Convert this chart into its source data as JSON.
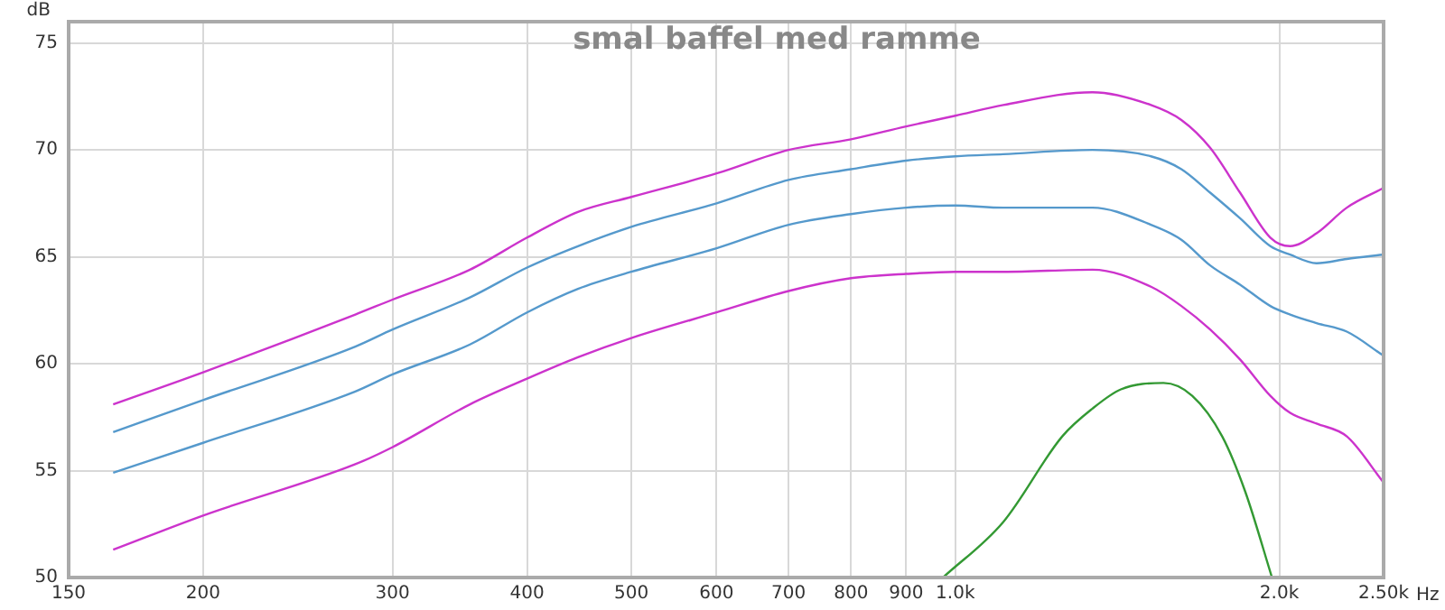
{
  "chart_data": {
    "type": "line",
    "title": "smal baffel med ramme",
    "xlabel": "Hz",
    "ylabel": "dB",
    "x": [
      165,
      200,
      277,
      300,
      354,
      400,
      446,
      500,
      600,
      700,
      800,
      900,
      1000,
      1108,
      1341,
      1520,
      1622,
      1725,
      1839,
      1962,
      2047,
      2166,
      2311,
      2495
    ],
    "series": [
      {
        "color": "#cc33cc",
        "values": [
          58.1,
          59.6,
          62.3,
          63.0,
          64.4,
          65.9,
          67.1,
          67.8,
          68.9,
          70.0,
          70.5,
          71.1,
          71.6,
          72.1,
          72.7,
          72.1,
          71.4,
          70.1,
          68.0,
          65.9,
          65.5,
          66.1,
          67.3,
          68.2
        ]
      },
      {
        "color": "#5599cc",
        "values": [
          56.8,
          58.3,
          60.8,
          61.6,
          63.1,
          64.5,
          65.5,
          66.4,
          67.5,
          68.6,
          69.1,
          69.5,
          69.7,
          69.8,
          70.0,
          69.7,
          69.1,
          68.0,
          66.8,
          65.5,
          65.1,
          64.7,
          64.9,
          65.1
        ]
      },
      {
        "color": "#5599cc",
        "values": [
          54.9,
          56.3,
          58.7,
          59.5,
          60.9,
          62.4,
          63.5,
          64.3,
          65.4,
          66.5,
          67.0,
          67.3,
          67.4,
          67.3,
          67.3,
          66.5,
          65.8,
          64.6,
          63.7,
          62.7,
          62.3,
          61.9,
          61.5,
          60.4
        ]
      },
      {
        "color": "#cc33cc",
        "values": [
          51.3,
          52.9,
          55.3,
          56.1,
          58.1,
          59.3,
          60.3,
          61.2,
          62.4,
          63.4,
          64.0,
          64.2,
          64.3,
          64.3,
          64.4,
          63.6,
          62.7,
          61.6,
          60.2,
          58.5,
          57.7,
          57.2,
          56.6,
          54.5
        ]
      },
      {
        "color": "#339933",
        "x": [
          974,
          1108,
          1257,
          1341,
          1425,
          1561,
          1660,
          1770,
          1860,
          1969
        ],
        "values": [
          50,
          52.6,
          56.6,
          57.9,
          58.8,
          59.1,
          58.5,
          56.6,
          54.0,
          50.0
        ]
      }
    ],
    "xlim": [
      150,
      2500
    ],
    "xticks": [
      150,
      200,
      300,
      400,
      500,
      600,
      700,
      800,
      900,
      {
        "value": 1000,
        "label": "1.0k"
      },
      {
        "value": 2000,
        "label": "2.0k"
      },
      {
        "value": 2500,
        "label": "2.50k"
      }
    ],
    "ylim": [
      50,
      76
    ],
    "yticks": [
      50,
      55,
      60,
      65,
      70,
      75
    ],
    "log": "x",
    "grid": true,
    "legend": false,
    "marker": "none",
    "line_style": "solid"
  }
}
